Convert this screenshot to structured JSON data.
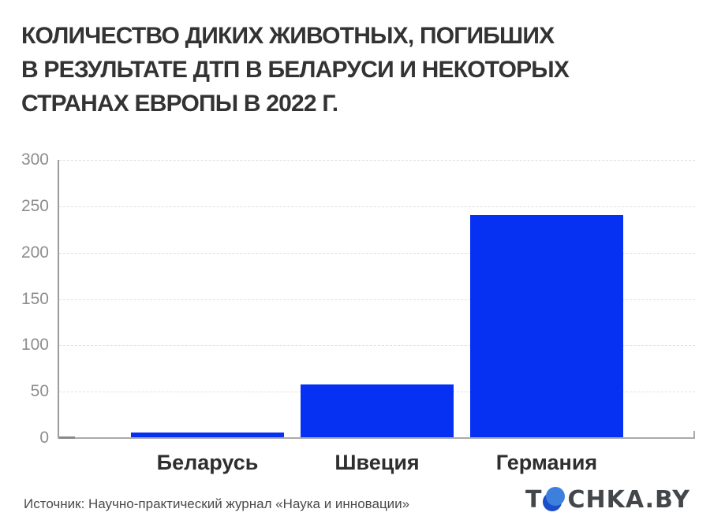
{
  "title": {
    "lines": [
      "КОЛИЧЕСТВО ДИКИХ ЖИВОТНЫХ, ПОГИБШИХ",
      "В РЕЗУЛЬТАТЕ ДТП В БЕЛАРУСИ И НЕКОТОРЫХ",
      "СТРАНАХ ЕВРОПЫ В 2022 Г."
    ]
  },
  "chart_data": {
    "type": "bar",
    "title": "Количество диких животных, погибших в результате ДТП в Беларуси и некоторых странах Европы в 2022 г.",
    "categories": [
      "Беларусь",
      "Швеция",
      "Германия"
    ],
    "values": [
      5,
      57,
      240
    ],
    "xlabel": "",
    "ylabel": "",
    "ylim": [
      0,
      300
    ],
    "yticks": [
      0,
      50,
      100,
      150,
      200,
      250,
      300
    ],
    "grid": "horizontal-dashed",
    "legend": "none",
    "bar_color": "#0631f2"
  },
  "footer": {
    "source": "Источник: Научно-практический журнал «Наука и инновации»",
    "logo": {
      "text_before_dot": "T",
      "text_after_dot": "CHKA.BY",
      "dot_icon": "blue-circle-dot",
      "dot_dark_color": "#1a4ecb",
      "dot_light_color": "#3c7fdd",
      "text_color": "#43474a"
    }
  },
  "colors": {
    "background": "#ffffff",
    "title_text": "#333333",
    "axis": "#9b9b9b",
    "gridline": "#e0e0e0",
    "y_tick_text": "#8d8d8d",
    "x_tick_text": "#2e2e2e",
    "bar": "#0631f2"
  }
}
